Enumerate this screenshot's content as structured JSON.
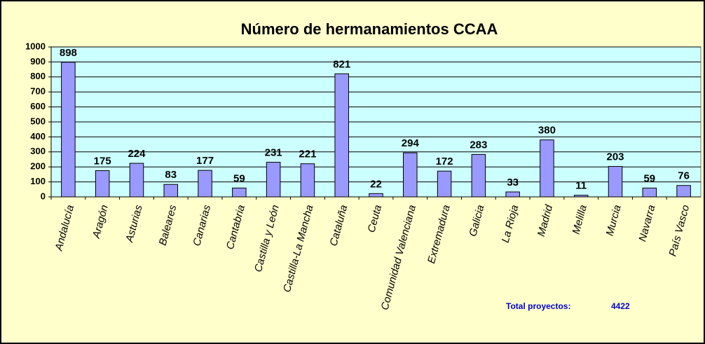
{
  "chart_data": {
    "type": "bar",
    "title": "Número de hermanamientos CCAA",
    "categories": [
      "Andalucía",
      "Aragón",
      "Asturias",
      "Baleares",
      "Canarias",
      "Cantabria",
      "Castilla y León",
      "Castilla-La Mancha",
      "Cataluña",
      "Ceuta",
      "Comunidad Valenciana",
      "Extremadura",
      "Galicia",
      "La Rioja",
      "Madrid",
      "Melilla",
      "Murcia",
      "Navarra",
      "País Vasco"
    ],
    "values": [
      898,
      175,
      224,
      83,
      177,
      59,
      231,
      221,
      821,
      22,
      294,
      172,
      283,
      33,
      380,
      11,
      203,
      59,
      76
    ],
    "color": "#9999ff",
    "ylim": [
      0,
      1000
    ],
    "yticks": [
      0,
      100,
      200,
      300,
      400,
      500,
      600,
      700,
      800,
      900,
      1000
    ],
    "grid": true,
    "annotation": {
      "label": "Total proyectos:",
      "value": 4422
    }
  }
}
